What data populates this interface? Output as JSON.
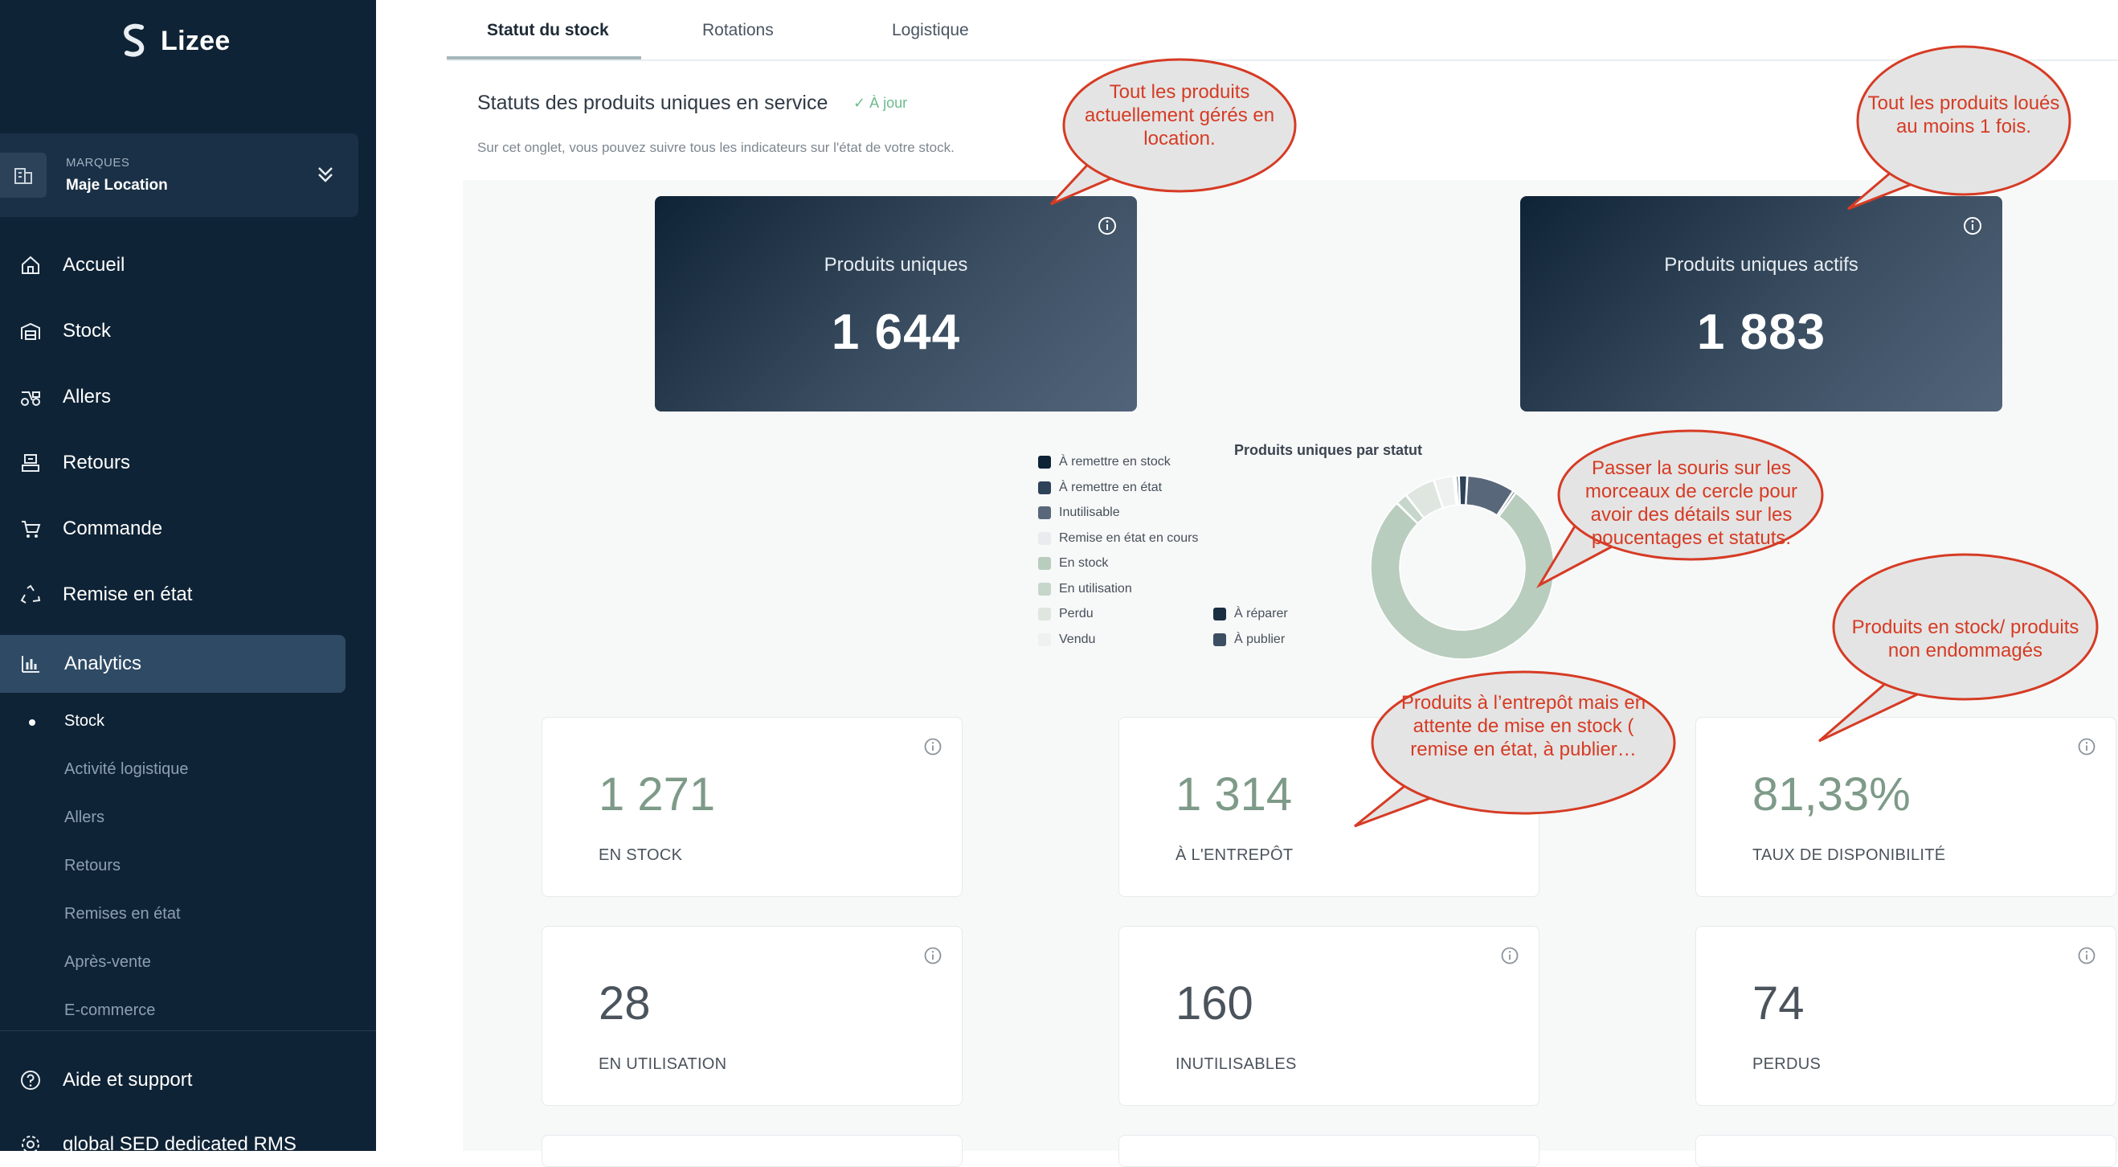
{
  "app": {
    "logo_text": "Lizee"
  },
  "brand_selector": {
    "caption": "MARQUES",
    "value": "Maje Location"
  },
  "nav": {
    "items": [
      {
        "label": "Accueil",
        "icon": "home-icon"
      },
      {
        "label": "Stock",
        "icon": "warehouse-icon"
      },
      {
        "label": "Allers",
        "icon": "delivery-icon"
      },
      {
        "label": "Retours",
        "icon": "returns-icon"
      },
      {
        "label": "Commande",
        "icon": "cart-icon"
      },
      {
        "label": "Remise en état",
        "icon": "recycle-icon"
      },
      {
        "label": "Analytics",
        "icon": "bar-chart-icon",
        "active": true
      }
    ],
    "sub_items": [
      "Stock",
      "Activité logistique",
      "Allers",
      "Retours",
      "Remises en état",
      "Après-vente",
      "E-commerce"
    ],
    "footer": [
      {
        "label": "Aide et support",
        "icon": "help-icon"
      },
      {
        "label": "global SED dedicated RMS",
        "icon": "settings-icon"
      }
    ]
  },
  "tabs": [
    "Statut du stock",
    "Rotations",
    "Logistique"
  ],
  "section": {
    "title": "Statuts des produits uniques en service",
    "status": "✓ À jour",
    "description": "Sur cet onglet, vous pouvez suivre tous les indicateurs sur l'état de votre stock."
  },
  "kpis": [
    {
      "title": "Produits uniques",
      "value": "1 644"
    },
    {
      "title": "Produits uniques actifs",
      "value": "1 883"
    }
  ],
  "chart_data": {
    "type": "pie",
    "variant": "donut",
    "title": "Produits uniques par statut",
    "legend_position": "left",
    "categories": [
      "À remettre en stock",
      "À remettre en état",
      "Inutilisable",
      "Remise en état en cours",
      "En stock",
      "En utilisation",
      "Perdu",
      "Vendu",
      "À réparer",
      "À publier"
    ],
    "values": [
      0.5,
      1.5,
      8.5,
      0,
      77.5,
      2.1,
      5.5,
      3.5,
      0.4,
      0.5
    ],
    "colors": [
      "#0f2336",
      "#2e4258",
      "#58687a",
      "#e8ecef",
      "#b9cdbe",
      "#c6d6ca",
      "#dee6df",
      "#eef1ef",
      "#1b2e42",
      "#3b4e62"
    ]
  },
  "cards": [
    {
      "value": "1 271",
      "label": "EN STOCK",
      "color": "#7e9a88"
    },
    {
      "value": "1 314",
      "label": "À L'ENTREPÔT",
      "color": "#7e9a88"
    },
    {
      "value": "81,33%",
      "label": "TAUX DE DISPONIBILITÉ",
      "color": "#7e9a88"
    },
    {
      "value": "28",
      "label": "EN UTILISATION",
      "color": "#4b535c"
    },
    {
      "value": "160",
      "label": "INUTILISABLES",
      "color": "#4b535c"
    },
    {
      "value": "74",
      "label": "PERDUS",
      "color": "#4b535c"
    }
  ],
  "callouts": [
    "Tout les produits actuellement gérés en location.",
    "Tout les produits loués au moins 1 fois.",
    "Passer la souris sur les morceaux de cercle pour avoir des détails sur les poucentages et statuts.",
    "Produits en stock/ produits non endommagés",
    "Produits à l’entrepôt mais en attente de mise en stock ( remise en état, à publier…"
  ],
  "colors": {
    "sidebar_bg": "#0f2336",
    "accent_green": "#7e9a88",
    "callout_red": "#d63b24",
    "callout_fill": "#e4e4e4"
  }
}
